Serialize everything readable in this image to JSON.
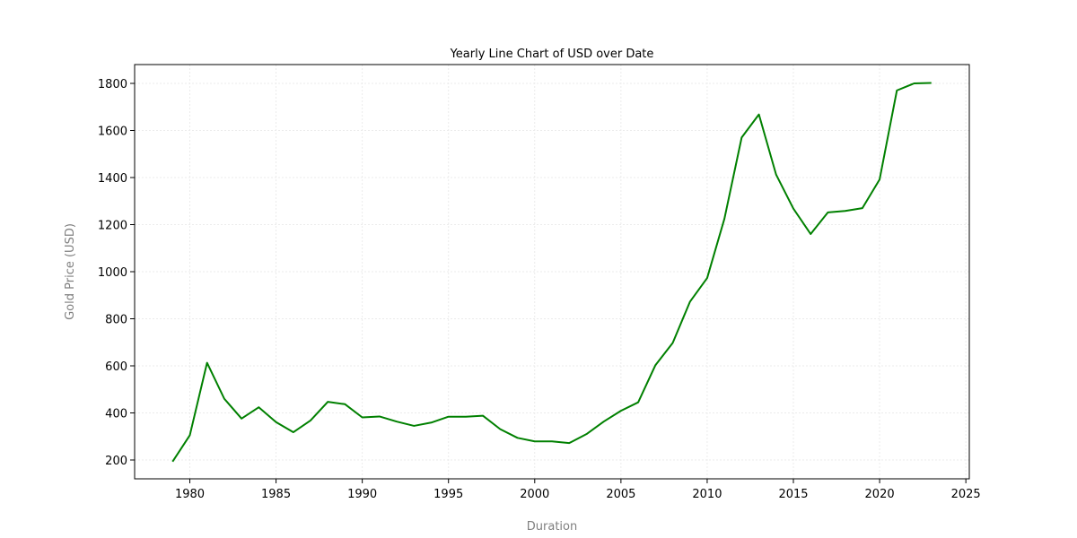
{
  "chart_data": {
    "type": "line",
    "title": "Yearly Line Chart of USD over Date",
    "xlabel": "Duration",
    "ylabel": "Gold Price (USD)",
    "xlim": [
      1976.8,
      2025.2
    ],
    "ylim": [
      120,
      1880
    ],
    "xticks": [
      1980,
      1985,
      1990,
      1995,
      2000,
      2005,
      2010,
      2015,
      2020,
      2025
    ],
    "yticks": [
      200,
      400,
      600,
      800,
      1000,
      1200,
      1400,
      1600,
      1800
    ],
    "grid": true,
    "colors": {
      "line": "#008000",
      "grid": "#ebebeb",
      "axis_label": "#808080"
    },
    "series": [
      {
        "x": [
          1979,
          1980,
          1981,
          1982,
          1983,
          1984,
          1985,
          1986,
          1987,
          1988,
          1989,
          1990,
          1991,
          1992,
          1993,
          1994,
          1995,
          1996,
          1997,
          1998,
          1999,
          2000,
          2001,
          2002,
          2003,
          2004,
          2005,
          2006,
          2007,
          2008,
          2009,
          2010,
          2011,
          2012,
          2013,
          2014,
          2015,
          2016,
          2017,
          2018,
          2019,
          2020,
          2021,
          2022,
          2023
        ],
        "y": [
          193,
          305,
          613,
          460,
          376,
          424,
          361,
          318,
          368,
          447,
          437,
          381,
          385,
          363,
          345,
          359,
          384,
          384,
          388,
          331,
          294,
          279,
          279,
          272,
          310,
          363,
          409,
          445,
          603,
          697,
          872,
          973,
          1225,
          1570,
          1668,
          1412,
          1268,
          1160,
          1252,
          1258,
          1270,
          1392,
          1770,
          1800,
          1802
        ]
      }
    ]
  }
}
